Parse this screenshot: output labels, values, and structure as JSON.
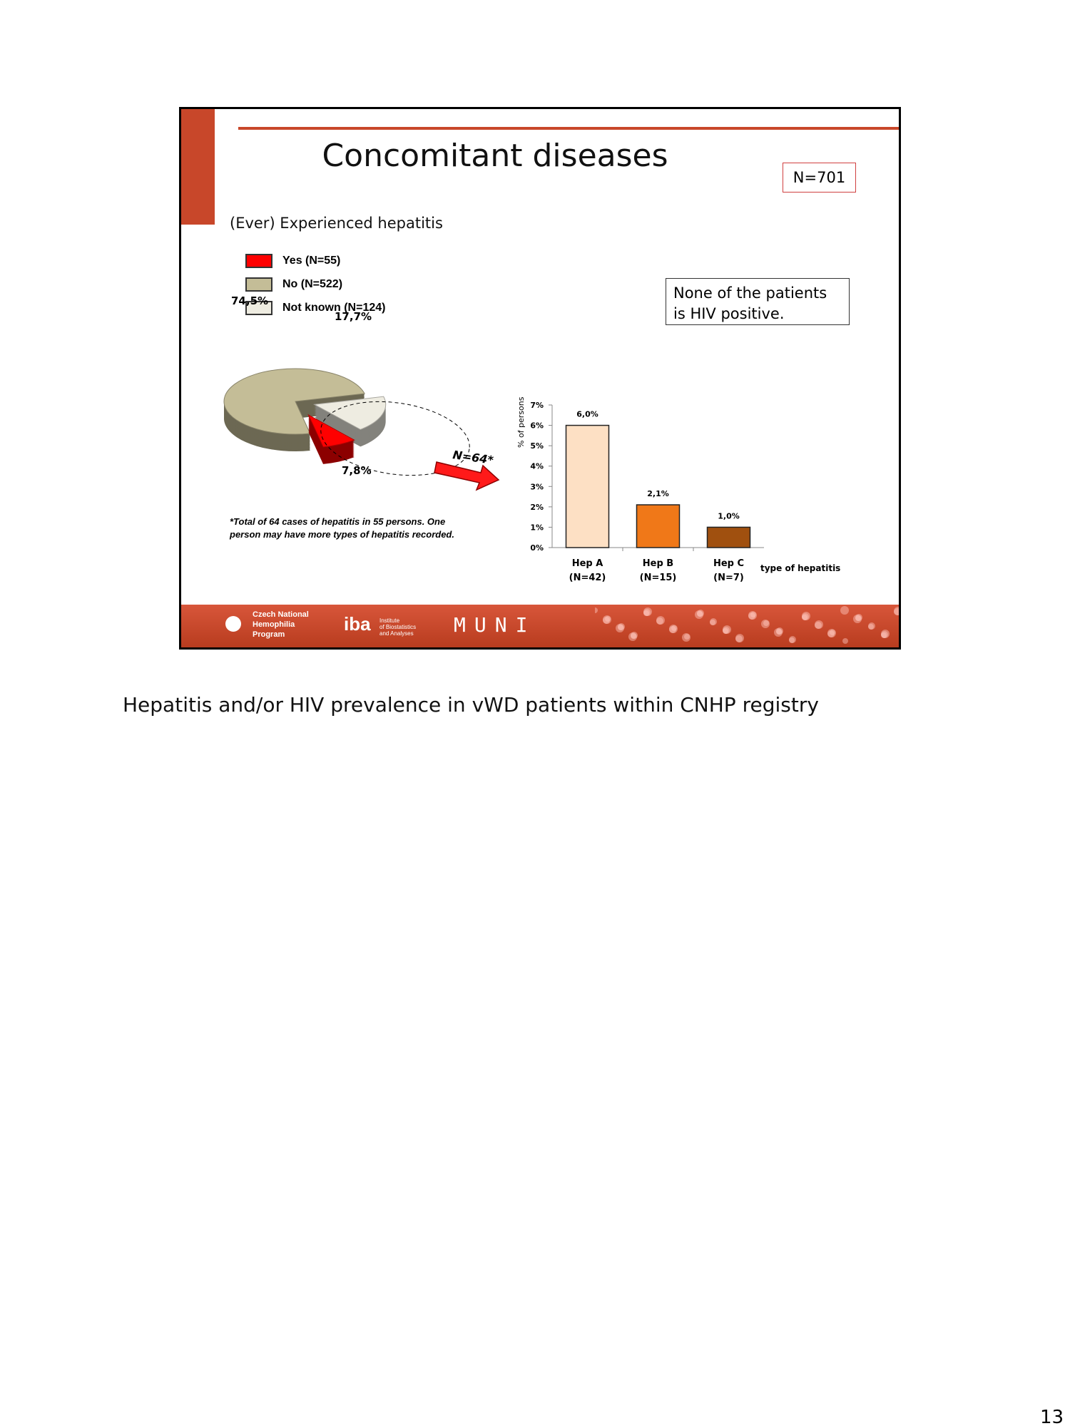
{
  "slide": {
    "title": "Concomitant diseases",
    "n_total": "N=701",
    "subtitle": "(Ever) Experienced hepatitis",
    "hiv_note": "None of the patients is HIV positive.",
    "arrow_label": "N=64*",
    "footnote_line1": "*Total of 64 cases of hepatitis in 55 persons. One",
    "footnote_line2": "person may have more types of hepatitis recorded.",
    "footer": {
      "logo1": [
        "Czech National",
        "Hemophilia",
        "Program"
      ],
      "logo2_mark": "iba",
      "logo2": [
        "Institute",
        "of Biostatistics",
        "and Analyses"
      ],
      "logo3": "MUNI"
    }
  },
  "caption": "Hepatitis and/or HIV prevalence in vWD patients within CNHP registry",
  "page_number": "13",
  "colors": {
    "accent": "#c8472a",
    "yes": "#ff0000",
    "no": "#c4bd97",
    "not_known": "#eeece1"
  },
  "chart_data": [
    {
      "type": "pie",
      "legend": [
        "Yes (N=55)",
        "No (N=522)",
        "Not known (N=124)"
      ],
      "labels": [
        "7,8%",
        "74,5%",
        "17,7%"
      ],
      "values": [
        7.8,
        74.5,
        17.7
      ],
      "colors": [
        "#ff0000",
        "#c4bd97",
        "#eeece1"
      ],
      "legend_position": "top-left"
    },
    {
      "type": "bar",
      "categories": [
        "Hep A",
        "Hep B",
        "Hep C"
      ],
      "category_n": [
        "(N=42)",
        "(N=15)",
        "(N=7)"
      ],
      "values": [
        6.0,
        2.1,
        1.0
      ],
      "data_labels": [
        "6,0%",
        "2,1%",
        "1,0%"
      ],
      "colors": [
        "#fde0c4",
        "#f07818",
        "#a0500f"
      ],
      "ylabel": "% of persons",
      "xlabel": "type of hepatitis",
      "ylim": [
        0,
        7
      ],
      "yticks": [
        "0%",
        "1%",
        "2%",
        "3%",
        "4%",
        "5%",
        "6%",
        "7%"
      ],
      "grid": false
    }
  ]
}
